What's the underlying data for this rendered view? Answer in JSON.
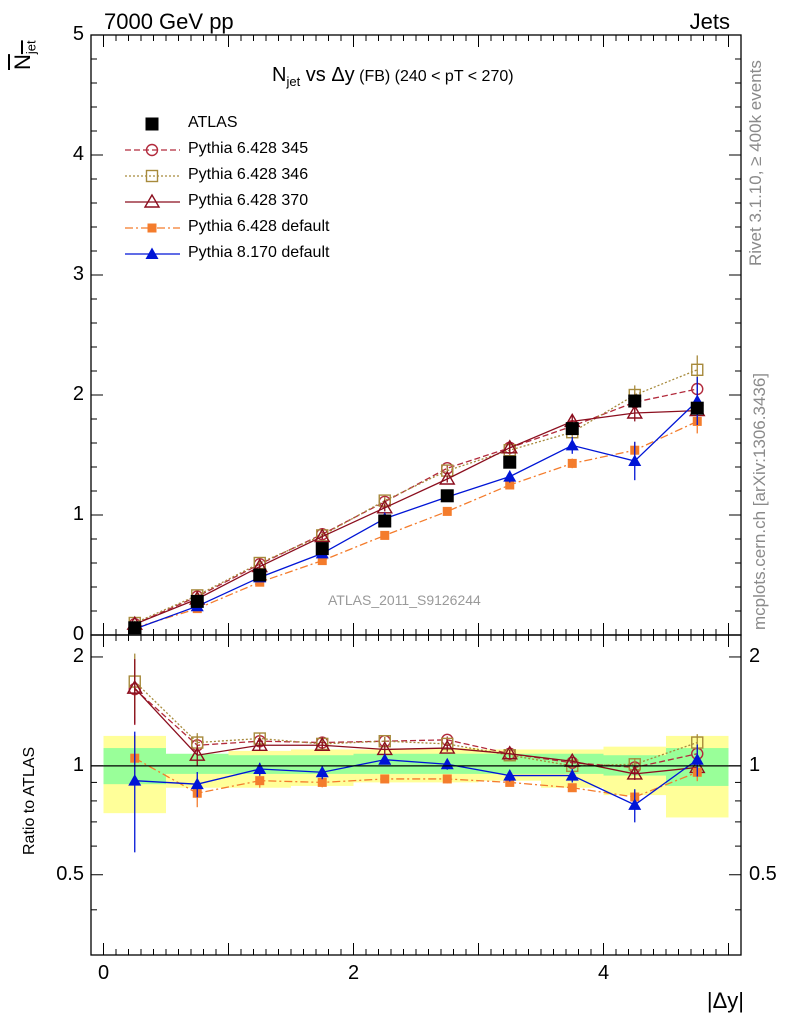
{
  "header": {
    "left": "7000 GeV pp",
    "right": "Jets"
  },
  "main_title": {
    "n": "N",
    "n_sub": "jet",
    "vs": " vs ",
    "dy": "Δy",
    "fb": " (FB) ",
    "range": "(240 < pT < 270)"
  },
  "ylabel_top": {
    "n": "N",
    "sub": "jet"
  },
  "ylabel_bottom": "Ratio to ATLAS",
  "xlabel": "|Δy|",
  "side_text": {
    "rivet": "Rivet 3.1.10, ≥ 400k events",
    "mcplots": "mcplots.cern.ch [arXiv:1306.3436]"
  },
  "watermark": "ATLAS_2011_S9126244",
  "tick_labels": {
    "x": [
      "0",
      "2",
      "4"
    ],
    "y_top": [
      "0",
      "1",
      "2",
      "3",
      "4",
      "5"
    ],
    "y_bottom": [
      "0.5",
      "1",
      "2"
    ]
  },
  "legend": [
    {
      "label": "ATLAS",
      "color": "#000000",
      "marker": "square-filled",
      "line": "none"
    },
    {
      "label": "Pythia 6.428 345",
      "color": "#b22a3c",
      "marker": "circle-open",
      "line": "dashed"
    },
    {
      "label": "Pythia 6.428 346",
      "color": "#a78a3c",
      "marker": "square-open",
      "line": "dotted"
    },
    {
      "label": "Pythia 6.428 370",
      "color": "#8b0e1e",
      "marker": "triangle-open",
      "line": "solid"
    },
    {
      "label": "Pythia 6.428 default",
      "color": "#f47c2c",
      "marker": "square-filled-small",
      "line": "dashdot"
    },
    {
      "label": "Pythia 8.170 default",
      "color": "#0015d6",
      "marker": "triangle-filled",
      "line": "solid"
    }
  ],
  "chart_data": {
    "type": "line",
    "x": [
      0.25,
      0.75,
      1.25,
      1.75,
      2.25,
      2.75,
      3.25,
      3.75,
      4.25,
      4.75
    ],
    "xlim": [
      -0.1,
      5.1
    ],
    "ylim_top": [
      0,
      5
    ],
    "ylim_bottom": [
      0.3,
      2.3
    ],
    "atlas": {
      "values": [
        0.06,
        0.28,
        0.5,
        0.72,
        0.95,
        1.16,
        1.44,
        1.72,
        1.95,
        1.89
      ],
      "band_inner": [
        [
          0.89,
          1.12
        ],
        [
          0.95,
          1.08
        ],
        [
          0.95,
          1.07
        ],
        [
          0.95,
          1.07
        ],
        [
          0.95,
          1.08
        ],
        [
          0.95,
          1.08
        ],
        [
          0.95,
          1.08
        ],
        [
          0.95,
          1.08
        ],
        [
          0.94,
          1.07
        ],
        [
          0.88,
          1.12
        ]
      ],
      "band_outer": [
        [
          0.74,
          1.21
        ],
        [
          0.87,
          1.07
        ],
        [
          0.87,
          1.1
        ],
        [
          0.88,
          1.11
        ],
        [
          0.9,
          1.11
        ],
        [
          0.9,
          1.12
        ],
        [
          0.91,
          1.11
        ],
        [
          0.87,
          1.11
        ],
        [
          0.83,
          1.13
        ],
        [
          0.72,
          1.21
        ]
      ]
    },
    "series": [
      {
        "name": "Pythia 6.428 345",
        "values": [
          0.09,
          0.32,
          0.59,
          0.84,
          1.11,
          1.39,
          1.56,
          1.74,
          1.94,
          2.05
        ],
        "ratio": [
          1.63,
          1.14,
          1.17,
          1.16,
          1.17,
          1.18,
          1.08,
          1.02,
          0.99,
          1.08
        ],
        "yerr": [
          0.02,
          0.02,
          0.02,
          0.02,
          0.03,
          0.03,
          0.04,
          0.05,
          0.08,
          0.1
        ]
      },
      {
        "name": "Pythia 6.428 346",
        "values": [
          0.1,
          0.33,
          0.6,
          0.83,
          1.12,
          1.37,
          1.54,
          1.69,
          2.0,
          2.21
        ],
        "ratio": [
          1.71,
          1.16,
          1.19,
          1.15,
          1.17,
          1.15,
          1.07,
          1.0,
          1.01,
          1.16
        ],
        "yerr": [
          0.02,
          0.02,
          0.02,
          0.02,
          0.03,
          0.03,
          0.04,
          0.05,
          0.08,
          0.12
        ]
      },
      {
        "name": "Pythia 6.428 370",
        "values": [
          0.09,
          0.3,
          0.57,
          0.82,
          1.06,
          1.3,
          1.56,
          1.78,
          1.85,
          1.87
        ],
        "ratio": [
          1.64,
          1.07,
          1.14,
          1.14,
          1.11,
          1.12,
          1.08,
          1.03,
          0.95,
          0.99
        ],
        "yerr": [
          0.02,
          0.02,
          0.02,
          0.02,
          0.03,
          0.03,
          0.04,
          0.05,
          0.07,
          0.1
        ]
      },
      {
        "name": "Pythia 6.428 default",
        "values": [
          0.06,
          0.22,
          0.44,
          0.62,
          0.83,
          1.03,
          1.25,
          1.43,
          1.54,
          1.78
        ],
        "ratio": [
          1.05,
          0.84,
          0.91,
          0.9,
          0.92,
          0.92,
          0.9,
          0.87,
          0.82,
          0.96
        ],
        "yerr": [
          0.01,
          0.02,
          0.02,
          0.02,
          0.02,
          0.03,
          0.03,
          0.04,
          0.07,
          0.1
        ]
      },
      {
        "name": "Pythia 8.170 default",
        "values": [
          0.05,
          0.24,
          0.48,
          0.68,
          0.97,
          1.15,
          1.32,
          1.58,
          1.45,
          1.95
        ],
        "ratio": [
          0.91,
          0.89,
          0.98,
          0.96,
          1.04,
          1.01,
          0.94,
          0.94,
          0.78,
          1.04
        ],
        "yerr": [
          0.02,
          0.02,
          0.02,
          0.03,
          0.03,
          0.04,
          0.05,
          0.07,
          0.16,
          0.2
        ]
      }
    ]
  }
}
